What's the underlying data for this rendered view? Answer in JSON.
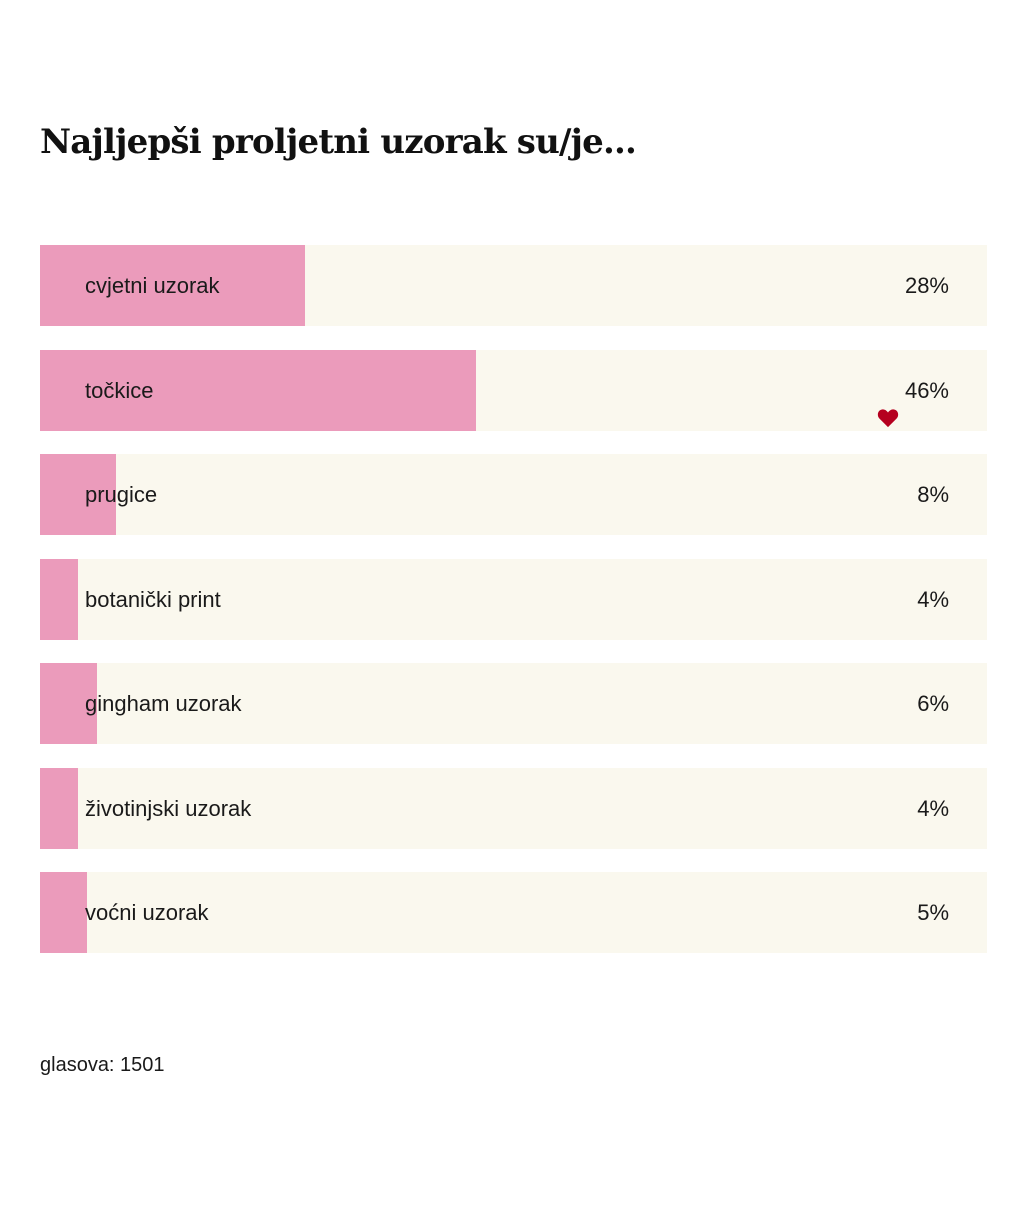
{
  "poll": {
    "title": "Najljepši proljetni uzorak su/je...",
    "options": [
      {
        "label": "cvjetni uzorak",
        "percent_text": "28%",
        "percent": 28,
        "selected": false
      },
      {
        "label": "točkice",
        "percent_text": "46%",
        "percent": 46,
        "selected": true
      },
      {
        "label": "prugice",
        "percent_text": "8%",
        "percent": 8,
        "selected": false
      },
      {
        "label": "botanički print",
        "percent_text": "4%",
        "percent": 4,
        "selected": false
      },
      {
        "label": "gingham uzorak",
        "percent_text": "6%",
        "percent": 6,
        "selected": false
      },
      {
        "label": "životinjski uzorak",
        "percent_text": "4%",
        "percent": 4,
        "selected": false
      },
      {
        "label": "voćni uzorak",
        "percent_text": "5%",
        "percent": 5,
        "selected": false
      }
    ],
    "votes_text": "glasova: 1501",
    "selected_icon": "heart-icon"
  },
  "colors": {
    "fill": "#eb9bbb",
    "track": "#faf8ee",
    "heart": "#b5001f"
  }
}
